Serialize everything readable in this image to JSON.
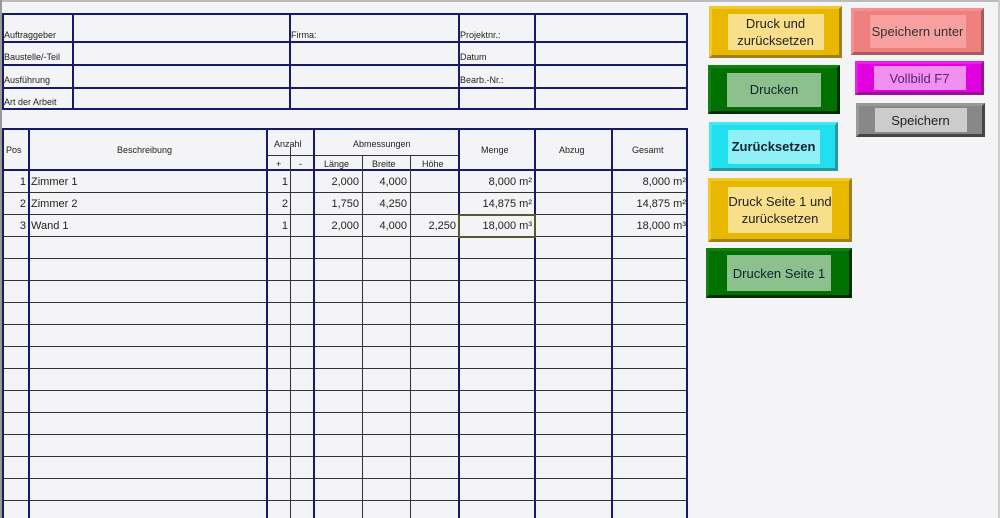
{
  "header_fields": {
    "auftraggeber": "Auftraggeber",
    "baustelle": "Baustelle/-Teil",
    "ausfuehrung": "Ausführung",
    "art": "Art der Arbeit",
    "firma": "Firma:",
    "projektnr": "Projektnr.:",
    "datum": "Datum",
    "bearb": "Bearb.-Nr.:"
  },
  "table": {
    "columns": {
      "pos": "Pos",
      "beschreibung": "Beschreibung",
      "anzahl": "Anzahl",
      "plus": "+",
      "minus": "-",
      "abmessungen": "Abmessungen",
      "laenge": "Länge",
      "breite": "Breite",
      "hoehe": "Höhe",
      "menge": "Menge",
      "abzug": "Abzug",
      "gesamt": "Gesamt"
    },
    "rows": [
      {
        "pos": "1",
        "beschreibung": "Zimmer 1",
        "plus": "1",
        "minus": "",
        "laenge": "2,000",
        "breite": "4,000",
        "hoehe": "",
        "menge": "8,000 m²",
        "abzug": "",
        "gesamt": "8,000 m²"
      },
      {
        "pos": "2",
        "beschreibung": "Zimmer 2",
        "plus": "2",
        "minus": "",
        "laenge": "1,750",
        "breite": "4,250",
        "hoehe": "",
        "menge": "14,875 m²",
        "abzug": "",
        "gesamt": "14,875 m²"
      },
      {
        "pos": "3",
        "beschreibung": "Wand 1",
        "plus": "1",
        "minus": "",
        "laenge": "2,000",
        "breite": "4,000",
        "hoehe": "2,250",
        "menge": "18,000 m³",
        "abzug": "",
        "gesamt": "18,000 m³"
      }
    ],
    "selected_cell": "Menge row 3"
  },
  "buttons": {
    "druck_zuruecksetzen": "Druck und zurücksetzen",
    "drucken": "Drucken",
    "zuruecksetzen": "Zurücksetzen",
    "druck_seite1": "Druck Seite 1 und zurücksetzen",
    "drucken_seite1": "Drucken Seite 1",
    "speichern_unter": "Speichern unter",
    "vollbild": "Vollbild F7",
    "speichern": "Speichern"
  },
  "colors": {
    "gold": "#e8b800",
    "green": "#007000",
    "cyan": "#20e0f0",
    "salmon": "#f08080",
    "magenta": "#e000e0",
    "gray": "#888888",
    "grid": "#1a1a6a"
  }
}
